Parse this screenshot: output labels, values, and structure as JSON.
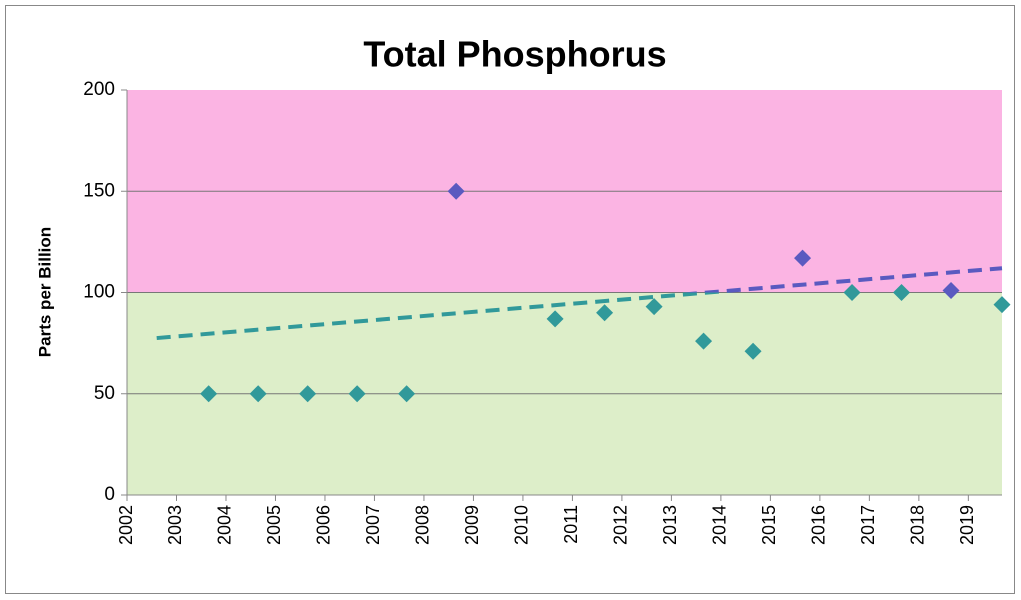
{
  "chart_data": {
    "type": "scatter",
    "title": "Total Phosphorus",
    "y_label": "Parts per Billion",
    "xlim": [
      2002,
      2019.68
    ],
    "xticks": [
      2002,
      2003,
      2004,
      2005,
      2006,
      2007,
      2008,
      2009,
      2010,
      2011,
      2012,
      2013,
      2014,
      2015,
      2016,
      2017,
      2018,
      2019
    ],
    "ylim": [
      0,
      200
    ],
    "yticks": [
      0,
      50,
      100,
      150,
      200
    ],
    "grid": true,
    "bands": [
      {
        "from": 0,
        "to": 100,
        "fill": "#ddeec9",
        "mark_color": "#31999a"
      },
      {
        "from": 100,
        "to": 200,
        "fill": "#fbb4e3",
        "mark_color": "#5a5ac0"
      }
    ],
    "series": [
      {
        "x": [
          2003.65,
          2004.65,
          2005.65,
          2006.65,
          2007.65,
          2008.65,
          2010.65,
          2011.65,
          2012.65,
          2013.65,
          2014.65,
          2015.65,
          2016.65,
          2017.65,
          2018.65,
          2019.68
        ],
        "values": [
          50,
          50,
          50,
          50,
          50,
          150,
          87,
          90,
          93,
          76,
          71,
          117,
          100,
          100,
          101,
          94
        ]
      }
    ],
    "trendline": {
      "x": [
        2002.6,
        2019.68
      ],
      "values": [
        77.5,
        112
      ]
    }
  }
}
